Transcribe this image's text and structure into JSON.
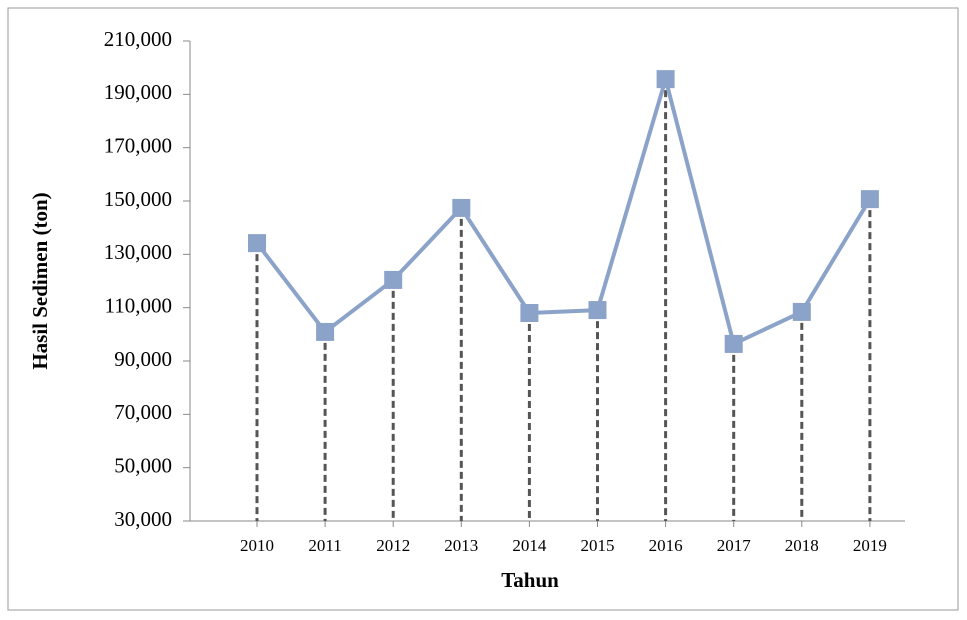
{
  "chart_data": {
    "type": "line",
    "y_label": "Hasil Sedimen (ton)",
    "x_label": "Tahun",
    "categories": [
      "2010",
      "2011",
      "2012",
      "2013",
      "2014",
      "2015",
      "2016",
      "2017",
      "2018",
      "2019"
    ],
    "series": [
      {
        "name": "Hasil Sedimen",
        "color": "#8ca3c9",
        "values": [
          134200,
          100900,
          120400,
          147400,
          108000,
          109100,
          195700,
          96400,
          108400,
          150700
        ]
      }
    ],
    "ylim": [
      30000,
      210000
    ],
    "yticks": [
      {
        "value": 30000,
        "label": "30,000"
      },
      {
        "value": 50000,
        "label": "50,000"
      },
      {
        "value": 70000,
        "label": "70,000"
      },
      {
        "value": 90000,
        "label": "90,000"
      },
      {
        "value": 110000,
        "label": "110,000"
      },
      {
        "value": 130000,
        "label": "130,000"
      },
      {
        "value": 150000,
        "label": "150,000"
      },
      {
        "value": 170000,
        "label": "170,000"
      },
      {
        "value": 190000,
        "label": "190,000"
      },
      {
        "value": 210000,
        "label": "210,000"
      }
    ],
    "drop_lines": true,
    "grid": false
  }
}
